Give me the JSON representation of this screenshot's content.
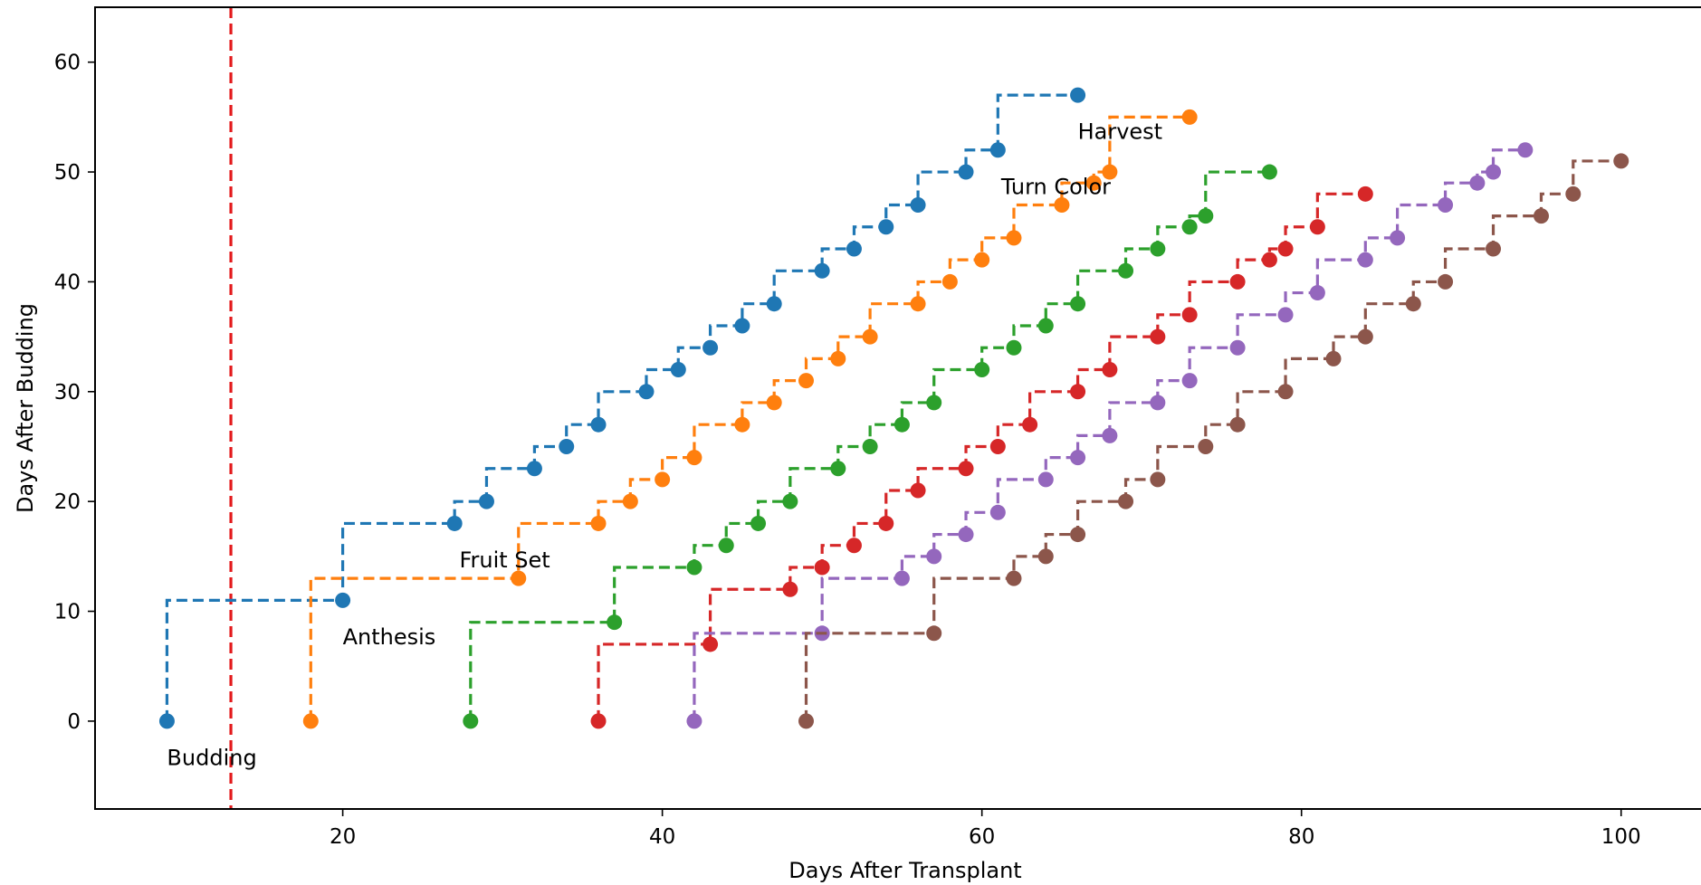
{
  "chart_data": {
    "type": "line",
    "xlabel": "Days After Transplant",
    "ylabel": "Days After Budding",
    "xlim": [
      4.5,
      105
    ],
    "ylim": [
      -8,
      65
    ],
    "xticks": [
      20,
      40,
      60,
      80,
      100
    ],
    "yticks": [
      0,
      10,
      20,
      30,
      40,
      50,
      60
    ],
    "grid": false,
    "step_style": "post",
    "line_style": "dashed",
    "marker": "circle",
    "vline": {
      "x": 13,
      "color": "#e31a1c",
      "style": "dashed"
    },
    "annotations": [
      {
        "text": "Budding",
        "x": 9,
        "y": -4
      },
      {
        "text": "Anthesis",
        "x": 20,
        "y": 7
      },
      {
        "text": "Fruit Set",
        "x": 27.3,
        "y": 14
      },
      {
        "text": "Turn Color",
        "x": 61.2,
        "y": 48
      },
      {
        "text": "Harvest",
        "x": 66,
        "y": 53
      }
    ],
    "series": [
      {
        "color": "#1f77b4",
        "x": [
          9,
          20,
          27,
          29,
          32,
          34,
          36,
          39,
          41,
          43,
          45,
          47,
          50,
          52,
          54,
          56,
          59,
          61,
          66
        ],
        "y": [
          0,
          11,
          18,
          20,
          23,
          25,
          27,
          30,
          32,
          34,
          36,
          38,
          41,
          43,
          45,
          47,
          50,
          52,
          57
        ]
      },
      {
        "color": "#ff7f0e",
        "x": [
          18,
          31,
          36,
          38,
          40,
          42,
          45,
          47,
          49,
          51,
          53,
          56,
          58,
          60,
          62,
          65,
          67,
          68,
          73
        ],
        "y": [
          0,
          13,
          18,
          20,
          22,
          24,
          27,
          29,
          31,
          33,
          35,
          38,
          40,
          42,
          44,
          47,
          49,
          50,
          55
        ]
      },
      {
        "color": "#2ca02c",
        "x": [
          28,
          37,
          42,
          44,
          46,
          48,
          51,
          53,
          55,
          57,
          60,
          62,
          64,
          66,
          69,
          71,
          73,
          74,
          78
        ],
        "y": [
          0,
          9,
          14,
          16,
          18,
          20,
          23,
          25,
          27,
          29,
          32,
          34,
          36,
          38,
          41,
          43,
          45,
          46,
          50
        ]
      },
      {
        "color": "#d62728",
        "x": [
          36,
          43,
          48,
          50,
          52,
          54,
          56,
          59,
          61,
          63,
          66,
          68,
          71,
          73,
          76,
          78,
          79,
          81,
          84
        ],
        "y": [
          0,
          7,
          12,
          14,
          16,
          18,
          21,
          23,
          25,
          27,
          30,
          32,
          35,
          37,
          40,
          42,
          43,
          45,
          48
        ]
      },
      {
        "color": "#9467bd",
        "x": [
          42,
          50,
          55,
          57,
          59,
          61,
          64,
          66,
          68,
          71,
          73,
          76,
          79,
          81,
          84,
          86,
          89,
          91,
          92,
          94
        ],
        "y": [
          0,
          8,
          13,
          15,
          17,
          19,
          22,
          24,
          26,
          29,
          31,
          34,
          37,
          39,
          42,
          44,
          47,
          49,
          50,
          52
        ]
      },
      {
        "color": "#8c564b",
        "x": [
          49,
          57,
          62,
          64,
          66,
          69,
          71,
          74,
          76,
          79,
          82,
          84,
          87,
          89,
          92,
          95,
          97,
          100
        ],
        "y": [
          0,
          8,
          13,
          15,
          17,
          20,
          22,
          25,
          27,
          30,
          33,
          35,
          38,
          40,
          43,
          46,
          48,
          51
        ]
      }
    ]
  }
}
